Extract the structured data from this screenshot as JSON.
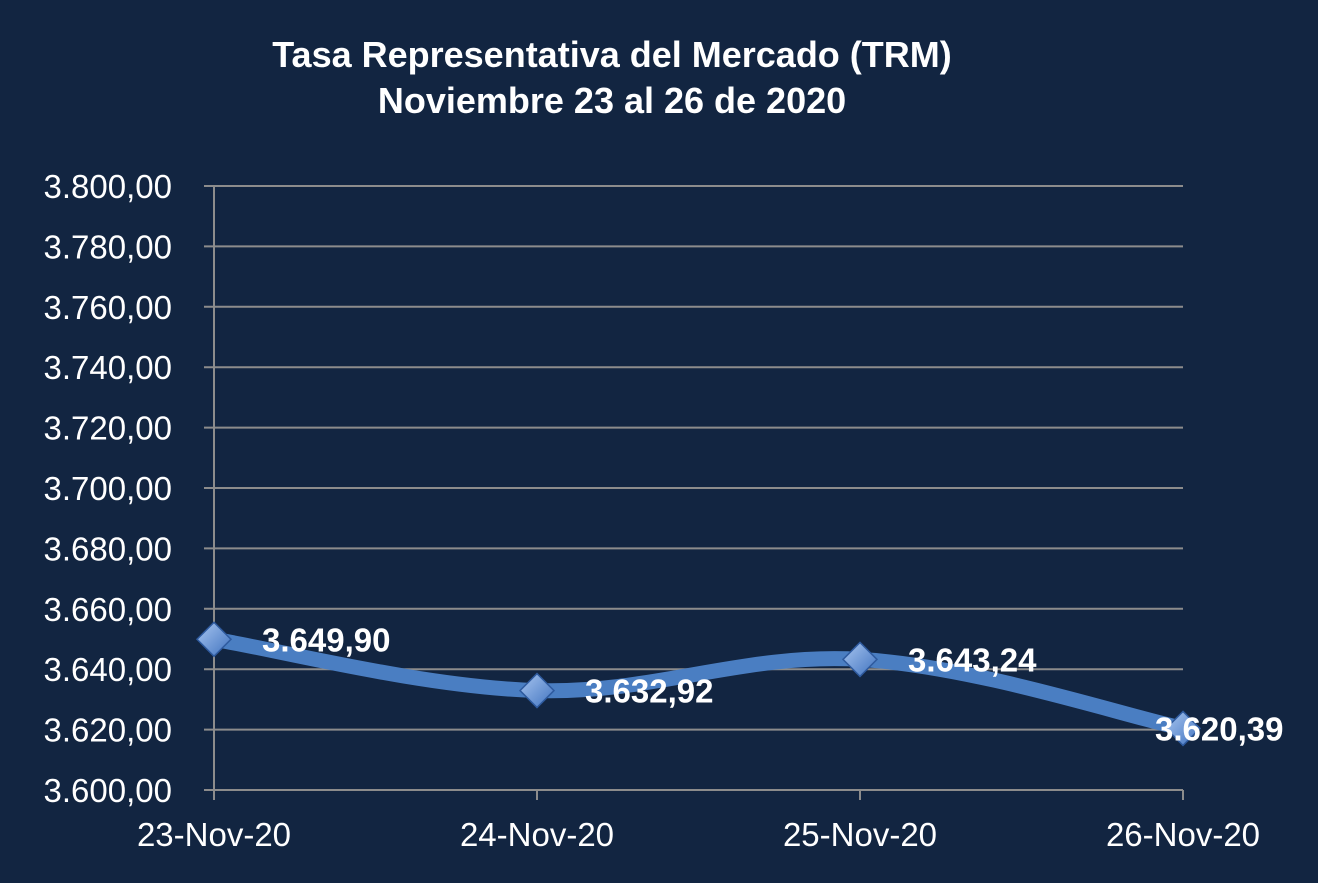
{
  "chart_data": {
    "type": "line",
    "title_line1": "Tasa Representativa del Mercado (TRM)",
    "title_line2": "Noviembre  23 al 26 de  2020",
    "categories": [
      "23-Nov-20",
      "24-Nov-20",
      "25-Nov-20",
      "26-Nov-20"
    ],
    "series": [
      {
        "values": [
          3649.9,
          3632.92,
          3643.24,
          3620.39
        ],
        "labels": [
          "3.649,90",
          "3.632,92",
          "3.643,24",
          "3.620,39"
        ]
      }
    ],
    "yticks": [
      "3.600,00",
      "3.620,00",
      "3.640,00",
      "3.660,00",
      "3.680,00",
      "3.700,00",
      "3.720,00",
      "3.740,00",
      "3.760,00",
      "3.780,00",
      "3.800,00"
    ],
    "ylim": [
      3600,
      3800
    ],
    "ystep": 20,
    "grid": true,
    "legend": "none",
    "colors": {
      "background": "#122541",
      "line": "#4a7ec2",
      "marker_light": "#a9c6f0",
      "marker_dark": "#3f72bf",
      "grid": "#8c8c8c",
      "text": "#ffffff"
    }
  }
}
